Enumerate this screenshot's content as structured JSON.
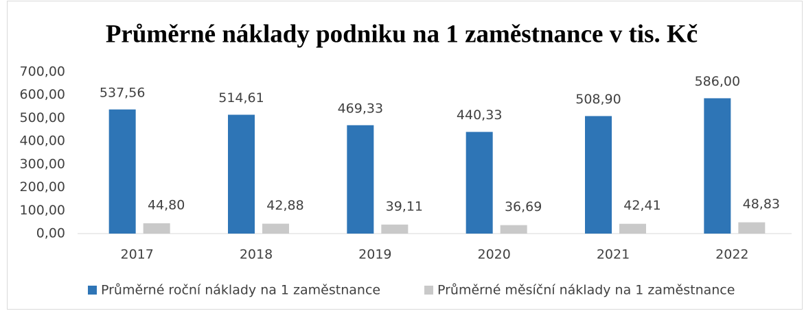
{
  "chart_data": {
    "type": "bar",
    "title": "Průměrné náklady podniku na 1 zaměstnance v tis. Kč",
    "categories": [
      "2017",
      "2018",
      "2019",
      "2020",
      "2021",
      "2022"
    ],
    "series": [
      {
        "name": "Průměrné roční náklady na 1 zaměstnance",
        "color": "#2e75b6",
        "values": [
          537.56,
          514.61,
          469.33,
          440.33,
          508.9,
          586.0
        ],
        "value_labels": [
          "537,56",
          "514,61",
          "469,33",
          "440,33",
          "508,90",
          "586,00"
        ]
      },
      {
        "name": "Průměrné měsíční náklady na 1 zaměstnance",
        "color": "#c9c9c9",
        "values": [
          44.8,
          42.88,
          39.11,
          36.69,
          42.41,
          48.83
        ],
        "value_labels": [
          "44,80",
          "42,88",
          "39,11",
          "36,69",
          "42,41",
          "48,83"
        ]
      }
    ],
    "ylim": [
      0,
      700
    ],
    "yticks": [
      {
        "value": 0,
        "label": "0,00"
      },
      {
        "value": 100,
        "label": "100,00"
      },
      {
        "value": 200,
        "label": "200,00"
      },
      {
        "value": 300,
        "label": "300,00"
      },
      {
        "value": 400,
        "label": "400,00"
      },
      {
        "value": 500,
        "label": "500,00"
      },
      {
        "value": 600,
        "label": "600,00"
      },
      {
        "value": 700,
        "label": "700,00"
      }
    ],
    "grid": false,
    "legend": "bottom"
  }
}
